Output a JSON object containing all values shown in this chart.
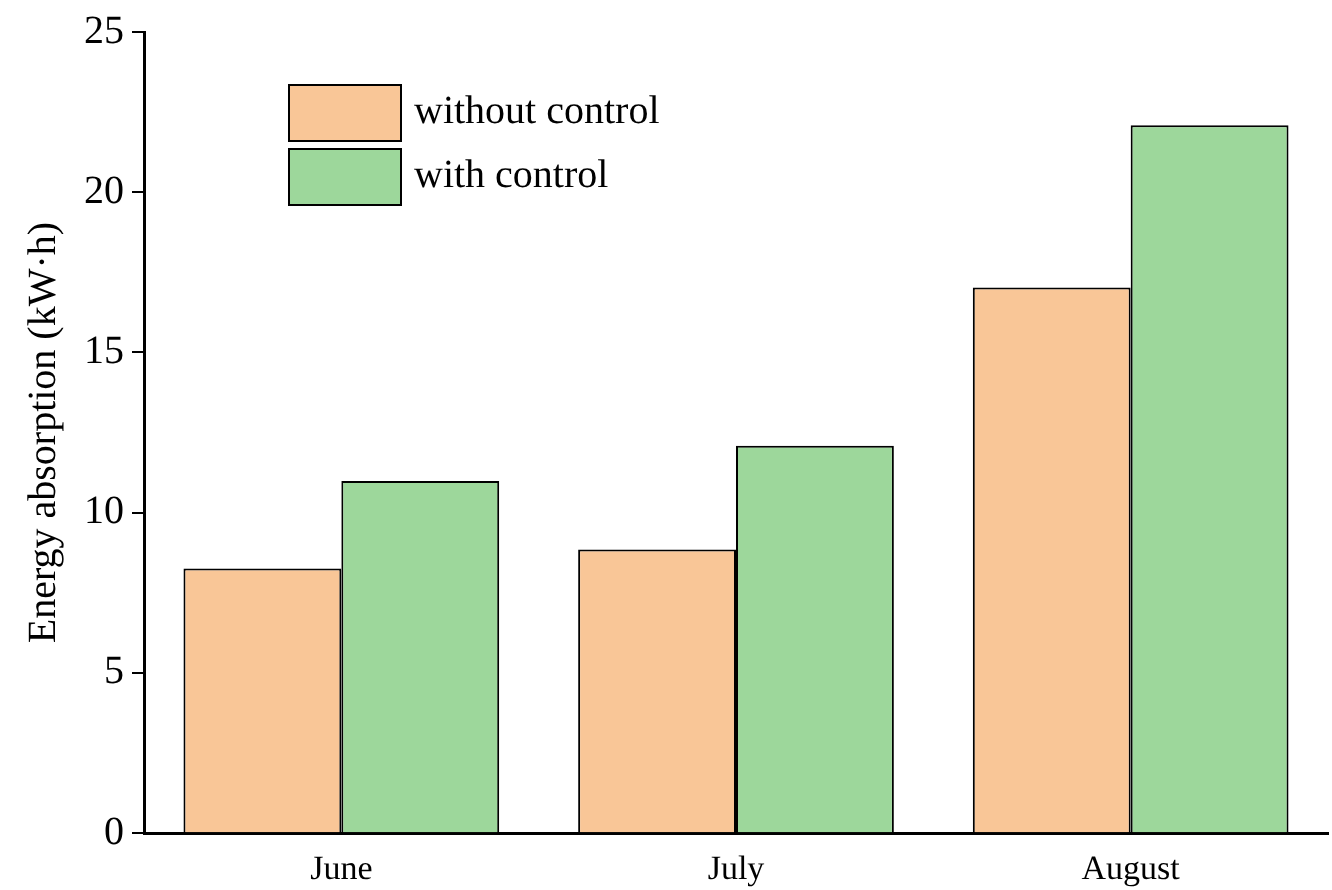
{
  "chart_data": {
    "type": "bar",
    "ylabel": "Energy absorption (kW·h)",
    "categories": [
      "June",
      "July",
      "August"
    ],
    "series": [
      {
        "name": "without control",
        "color": "#f9c697",
        "values": [
          8.26,
          8.85,
          17.03
        ]
      },
      {
        "name": "with control",
        "color": "#9dd79b",
        "values": [
          10.99,
          12.09,
          22.09
        ]
      }
    ],
    "ylim": [
      0,
      25
    ],
    "yticks": [
      0,
      5,
      10,
      15,
      20,
      25
    ],
    "grid": false,
    "legend": "top left"
  }
}
